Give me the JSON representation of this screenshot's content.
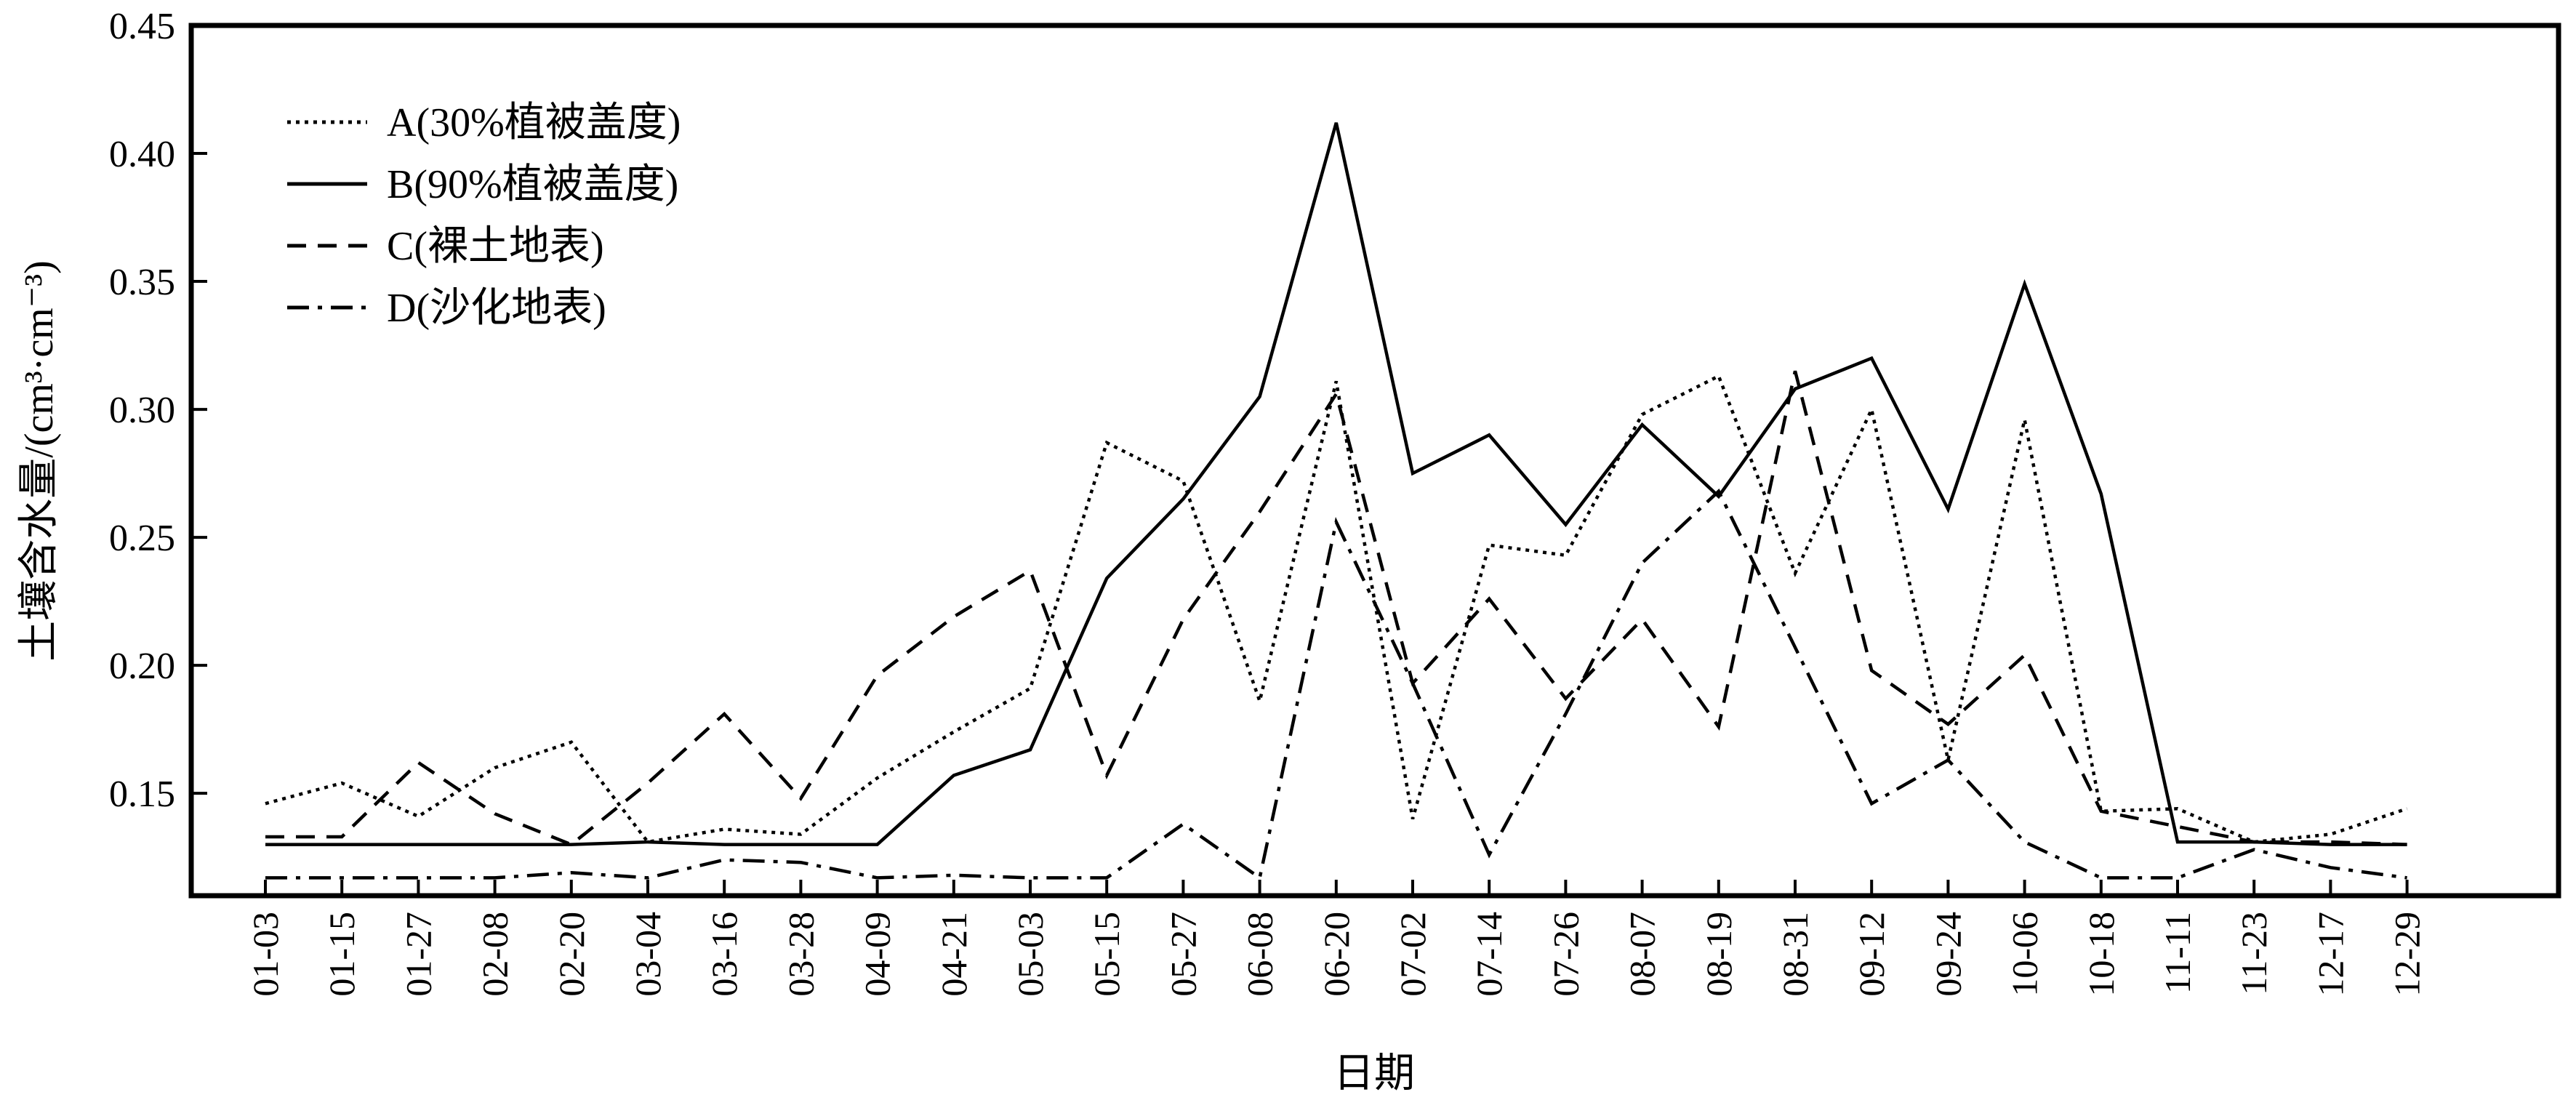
{
  "chart_data": {
    "type": "line",
    "title": "",
    "xlabel": "日期",
    "ylabel": "土壤含水量/(cm³·cm⁻³)",
    "ylim": [
      0.11,
      0.45
    ],
    "yticks": [
      "0.15",
      "0.20",
      "0.25",
      "0.30",
      "0.35",
      "0.40",
      "0.45"
    ],
    "ytick_values": [
      0.15,
      0.2,
      0.25,
      0.3,
      0.35,
      0.4,
      0.45
    ],
    "grid": false,
    "legend_position": "top-left",
    "categories": [
      "01-03",
      "01-15",
      "01-27",
      "02-08",
      "02-20",
      "03-04",
      "03-16",
      "03-28",
      "04-09",
      "04-21",
      "05-03",
      "05-15",
      "05-27",
      "06-08",
      "06-20",
      "07-02",
      "07-14",
      "07-26",
      "08-07",
      "08-19",
      "08-31",
      "09-12",
      "09-24",
      "10-06",
      "10-18",
      "11-11",
      "11-23",
      "12-17",
      "12-29"
    ],
    "series": [
      {
        "name": "A(30%植被盖度)",
        "dash": "dotted",
        "values": [
          0.146,
          0.154,
          0.141,
          0.16,
          0.17,
          0.131,
          0.136,
          0.134,
          0.156,
          0.174,
          0.191,
          0.287,
          0.272,
          0.186,
          0.311,
          0.14,
          0.247,
          0.243,
          0.298,
          0.313,
          0.236,
          0.3,
          0.163,
          0.296,
          0.143,
          0.144,
          0.131,
          0.134,
          0.144
        ]
      },
      {
        "name": "B(90%植被盖度)",
        "dash": "solid",
        "values": [
          0.13,
          0.13,
          0.13,
          0.13,
          0.13,
          0.131,
          0.13,
          0.13,
          0.13,
          0.157,
          0.167,
          0.234,
          0.265,
          0.305,
          0.412,
          0.275,
          0.29,
          0.255,
          0.294,
          0.266,
          0.308,
          0.32,
          0.261,
          0.349,
          0.267,
          0.131,
          0.131,
          0.13,
          0.13
        ]
      },
      {
        "name": "C(裸土地表)",
        "dash": "dashed",
        "values": [
          0.133,
          0.133,
          0.162,
          0.142,
          0.13,
          0.154,
          0.181,
          0.148,
          0.196,
          0.219,
          0.237,
          0.157,
          0.218,
          0.26,
          0.306,
          0.193,
          0.226,
          0.187,
          0.218,
          0.176,
          0.315,
          0.198,
          0.177,
          0.204,
          0.143,
          0.137,
          0.131,
          0.131,
          0.13
        ]
      },
      {
        "name": "D(沙化地表)",
        "dash": "dashdot",
        "values": [
          0.117,
          0.117,
          0.117,
          0.117,
          0.119,
          0.117,
          0.124,
          0.123,
          0.117,
          0.118,
          0.117,
          0.117,
          0.138,
          0.117,
          0.256,
          0.193,
          0.126,
          0.181,
          0.24,
          0.268,
          0.207,
          0.146,
          0.163,
          0.131,
          0.117,
          0.117,
          0.128,
          0.121,
          0.117
        ]
      }
    ]
  }
}
